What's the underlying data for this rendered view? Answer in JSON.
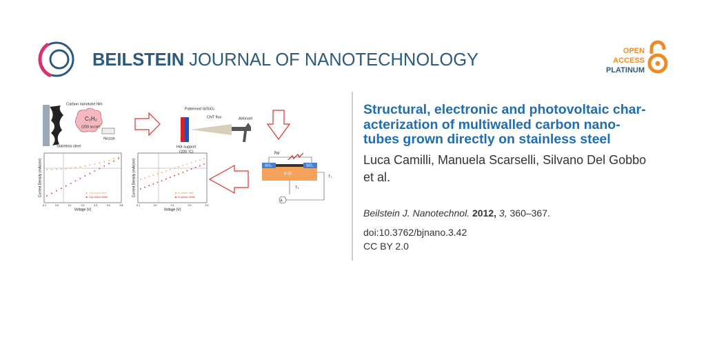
{
  "header": {
    "journal_bold": "BEILSTEIN",
    "journal_rest": "JOURNAL OF NANOTECHNOLOGY",
    "badge": [
      "OPEN",
      "ACCESS",
      "PLATINUM"
    ]
  },
  "graphical_abstract": {
    "labels": [
      "Carbon nanotube film",
      "C₂H₂",
      "(200 sccm)",
      "Nozzle",
      "Stainless steel",
      "Patterned Si/SiO₂",
      "CNT flux",
      "Airbrush",
      "Hot support",
      "(200 °C)",
      "hν",
      "SiO₂",
      "SiO₂",
      "n-Si",
      "T₁",
      "T₂",
      "A"
    ],
    "plots": [
      {
        "y_label": "Current Density (mA/cm²)",
        "x_label": "Voltage (V)",
        "x_ticks": [
          "-0.1",
          "0.0",
          "0.1",
          "0.2",
          "0.3",
          "0.4",
          "0.5"
        ],
        "legend": [
          "Top-down dark",
          "Top-down white"
        ]
      },
      {
        "y_label": "Current Density (mA/cm²)",
        "x_label": "Voltage (V)",
        "x_ticks": [
          "-0.1",
          "0.0",
          "0.1",
          "0.2",
          "0.3"
        ],
        "legend": [
          "In-plane dark",
          "In-plane white"
        ]
      }
    ]
  },
  "article": {
    "title_lines": [
      "Structural, electronic and photovoltaic char-",
      "acterization of multiwalled carbon nano-",
      "tubes grown directly on stainless steel"
    ],
    "author_lines": [
      "Luca Camilli, Manuela Scarselli, Silvano Del Gobbo",
      "et al."
    ],
    "citation": {
      "journal": "Beilstein J. Nanotechnol.",
      "year": "2012,",
      "volume": "3,",
      "pages": "360–367."
    },
    "doi": "doi:10.3762/bjnano.3.42",
    "license": "CC BY 2.0"
  }
}
